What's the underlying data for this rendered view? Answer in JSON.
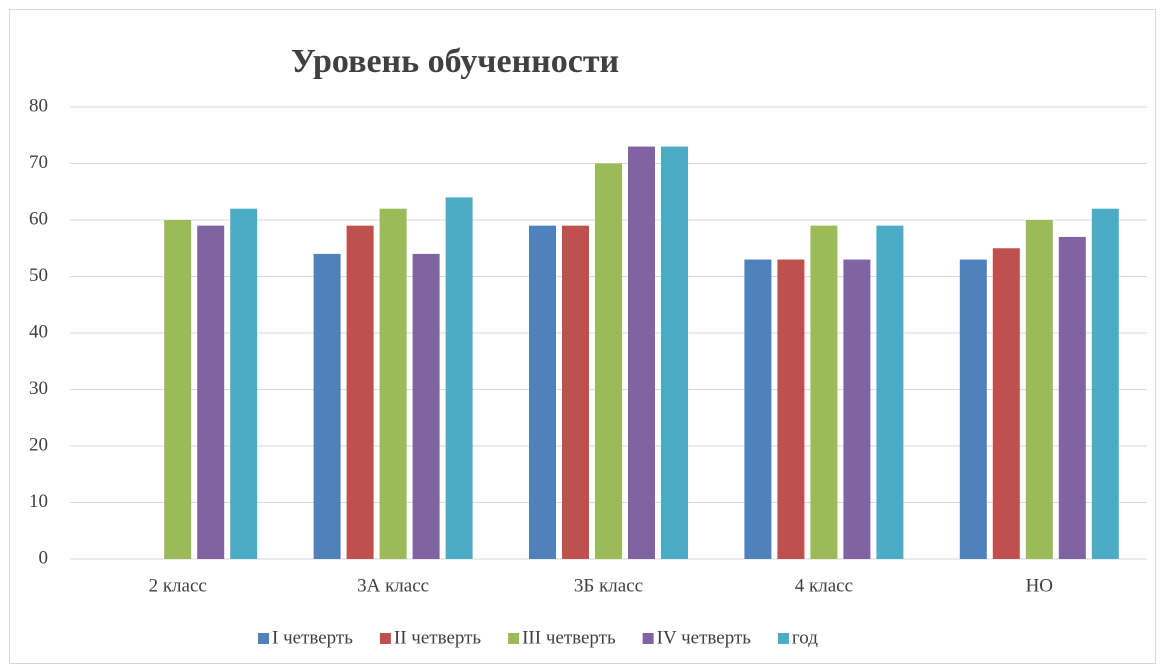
{
  "chart_data": {
    "type": "bar",
    "title": "Уровень обученности",
    "categories": [
      "2 класс",
      "3А класс",
      "3Б класс",
      "4 класс",
      "НО"
    ],
    "series": [
      {
        "name": "I четверть",
        "color": "#4f81bd",
        "values": [
          null,
          54,
          59,
          53,
          53
        ]
      },
      {
        "name": "II четверть",
        "color": "#c0504d",
        "values": [
          null,
          59,
          59,
          53,
          55
        ]
      },
      {
        "name": "III четверть",
        "color": "#9bbb59",
        "values": [
          60,
          62,
          70,
          59,
          60
        ]
      },
      {
        "name": "IV четверть",
        "color": "#8064a2",
        "values": [
          59,
          54,
          73,
          53,
          57
        ]
      },
      {
        "name": "год",
        "color": "#4bacc6",
        "values": [
          62,
          64,
          73,
          59,
          62
        ]
      }
    ],
    "ylim": [
      0,
      80
    ],
    "yticks": [
      0,
      10,
      20,
      30,
      40,
      50,
      60,
      70,
      80
    ],
    "grid": true,
    "legend": "bottom"
  }
}
